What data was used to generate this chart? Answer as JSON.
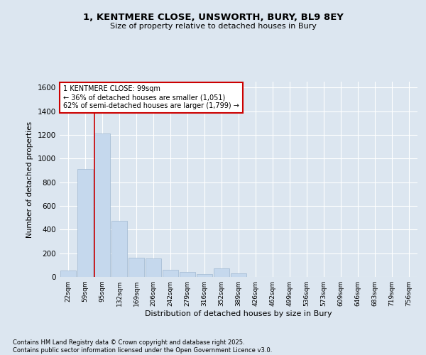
{
  "title_line1": "1, KENTMERE CLOSE, UNSWORTH, BURY, BL9 8EY",
  "title_line2": "Size of property relative to detached houses in Bury",
  "xlabel": "Distribution of detached houses by size in Bury",
  "ylabel": "Number of detached properties",
  "categories": [
    "22sqm",
    "59sqm",
    "95sqm",
    "132sqm",
    "169sqm",
    "206sqm",
    "242sqm",
    "279sqm",
    "316sqm",
    "352sqm",
    "389sqm",
    "426sqm",
    "462sqm",
    "499sqm",
    "536sqm",
    "573sqm",
    "609sqm",
    "646sqm",
    "683sqm",
    "719sqm",
    "756sqm"
  ],
  "values": [
    55,
    910,
    1210,
    475,
    165,
    155,
    60,
    45,
    25,
    70,
    30,
    0,
    0,
    0,
    0,
    0,
    0,
    0,
    0,
    0,
    0
  ],
  "bar_color": "#c5d8ed",
  "bar_edge_color": "#a0b8d0",
  "fig_bg_color": "#dce6f0",
  "axes_bg_color": "#dce6f0",
  "grid_color": "#ffffff",
  "annotation_box_color": "#ffffff",
  "annotation_border_color": "#cc0000",
  "vline_color": "#cc0000",
  "vline_x_index": 2,
  "ylim": [
    0,
    1650
  ],
  "yticks": [
    0,
    200,
    400,
    600,
    800,
    1000,
    1200,
    1400,
    1600
  ],
  "annotation_text": "1 KENTMERE CLOSE: 99sqm\n← 36% of detached houses are smaller (1,051)\n62% of semi-detached houses are larger (1,799) →",
  "footer_line1": "Contains HM Land Registry data © Crown copyright and database right 2025.",
  "footer_line2": "Contains public sector information licensed under the Open Government Licence v3.0."
}
